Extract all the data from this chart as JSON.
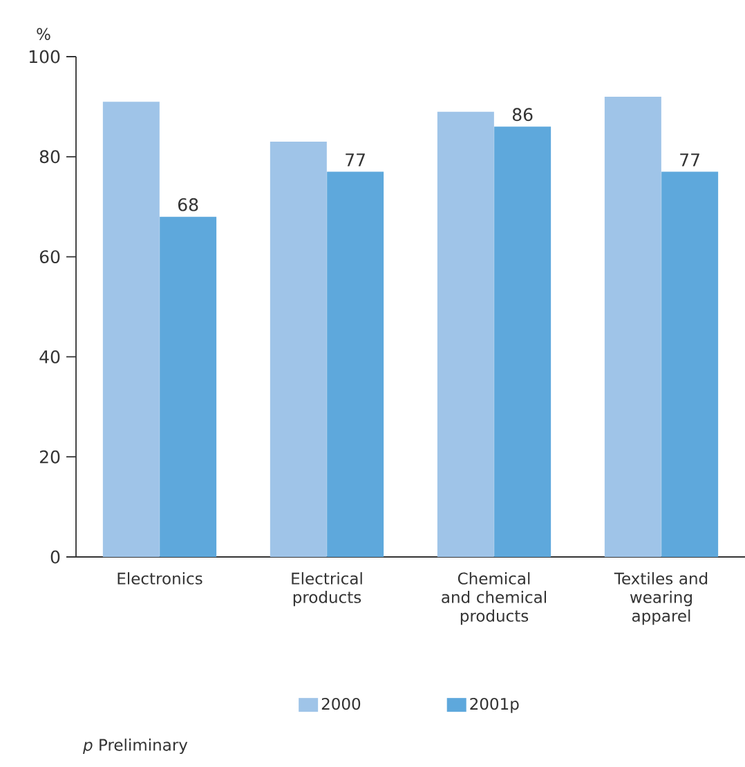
{
  "chart_data": {
    "type": "bar",
    "ylabel": "%",
    "categories": [
      "Electronics",
      "Electrical products",
      "Chemical and chemical products",
      "Textiles and wearing apparel"
    ],
    "series": [
      {
        "name": "2000",
        "color": "#9fc4e8",
        "values": [
          91,
          83,
          89,
          92
        ]
      },
      {
        "name": "2001p",
        "color": "#5ea8dc",
        "values": [
          68,
          77,
          86,
          77
        ],
        "value_labels": [
          "68",
          "77",
          "86",
          "77"
        ]
      }
    ],
    "ylim": [
      0,
      100
    ],
    "yticks": [
      0,
      20,
      40,
      60,
      80,
      100
    ],
    "grid": false,
    "legend": "bottom",
    "annotations": [
      "*p* Preliminary"
    ]
  }
}
